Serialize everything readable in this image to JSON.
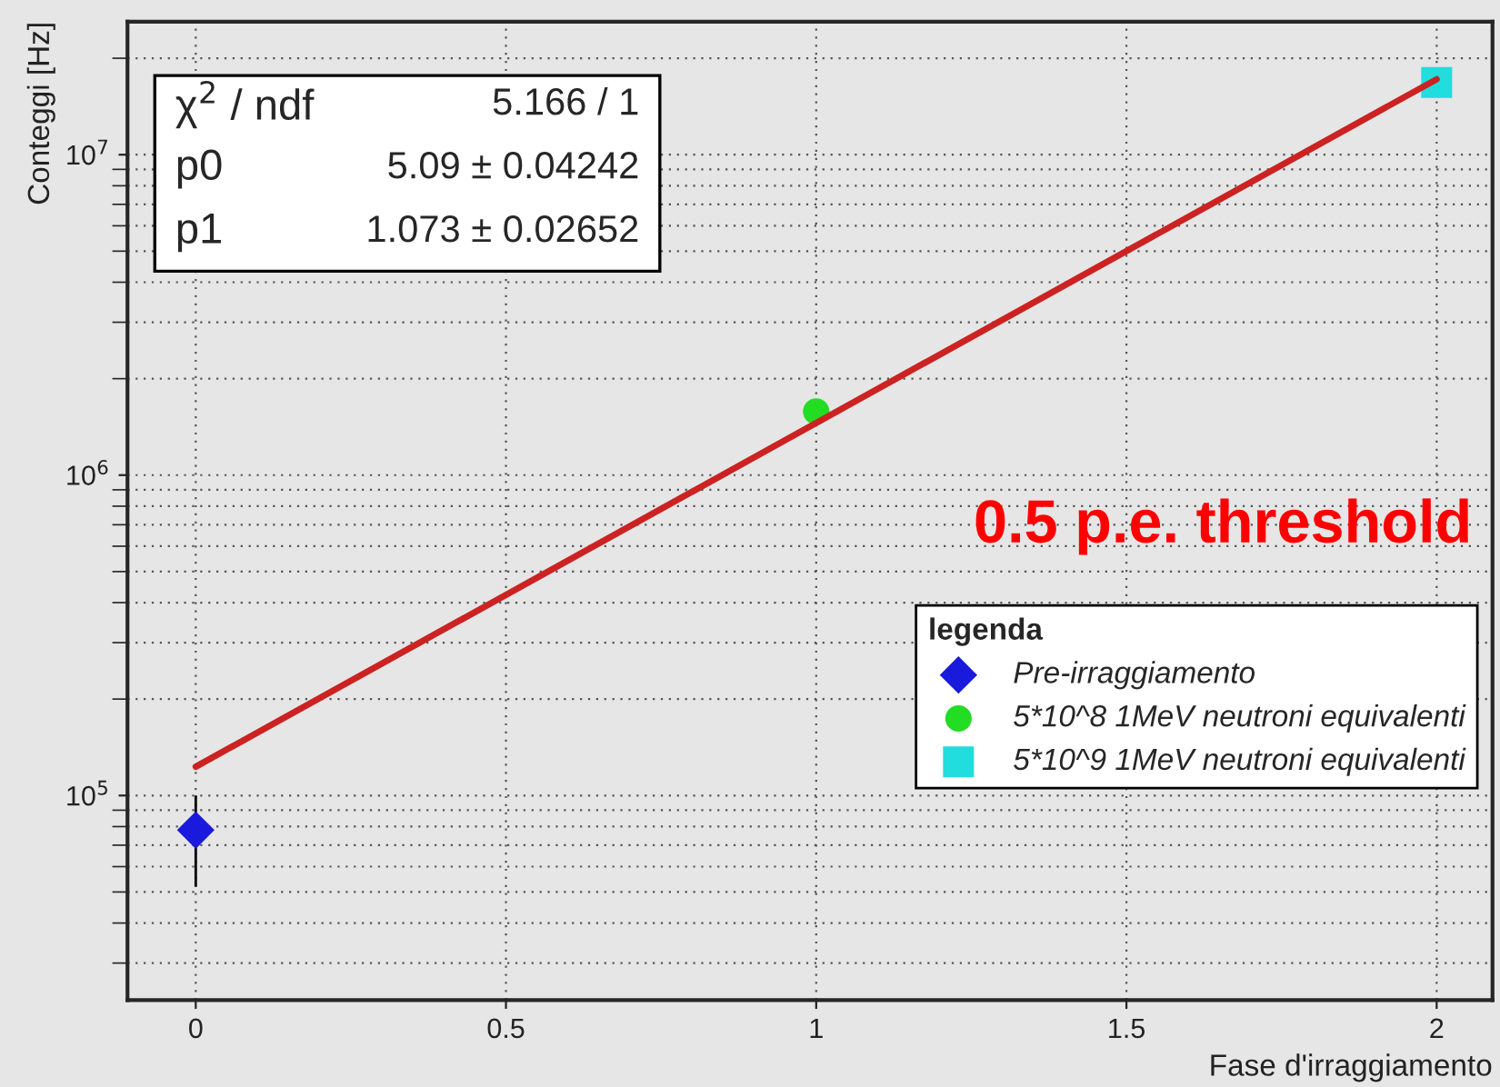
{
  "chart_data": {
    "type": "scatter",
    "xlabel": "Fase d'irraggiamento",
    "ylabel": "Conteggi [Hz]",
    "legend_title": "legenda",
    "log": "y",
    "xlim": [
      -0.11,
      2.09
    ],
    "xticks": [
      0,
      0.5,
      1,
      1.5,
      2
    ],
    "ylim": [
      23000,
      26000000
    ],
    "yticks": [
      {
        "value": 100000,
        "label": "10$^{5}$"
      },
      {
        "value": 1000000,
        "label": "10$^{6}$"
      },
      {
        "value": 10000000,
        "label": "10$^{7}$"
      }
    ],
    "grid": true,
    "legend": "right",
    "series": [
      {
        "name": "Pre-irraggiamento",
        "color": "#1a1adc",
        "marker": "diamond",
        "x": [
          0
        ],
        "values": [
          78000
        ],
        "errors": [
          [
            52000,
            100000
          ]
        ]
      },
      {
        "name": "5*10^8 1MeV neutroni equivalenti",
        "color": "#22dd22",
        "marker": "circle",
        "x": [
          1
        ],
        "values": [
          1580000
        ]
      },
      {
        "name": "5*10^9 1MeV neutroni equivalenti",
        "color": "#22dddd",
        "marker": "square",
        "x": [
          2
        ],
        "values": [
          16800000
        ]
      },
      {
        "type": "line",
        "color": "#cc2222",
        "x": [
          0,
          2
        ],
        "values": [
          123000,
          17200000
        ]
      }
    ],
    "annotations": [
      "χ$^{2}$ / ndf",
      "5.166 / 1",
      "p0",
      "5.09 ± 0.04242",
      "p1",
      "1.073 ± 0.02652",
      "0.5 p.e. threshold"
    ]
  }
}
